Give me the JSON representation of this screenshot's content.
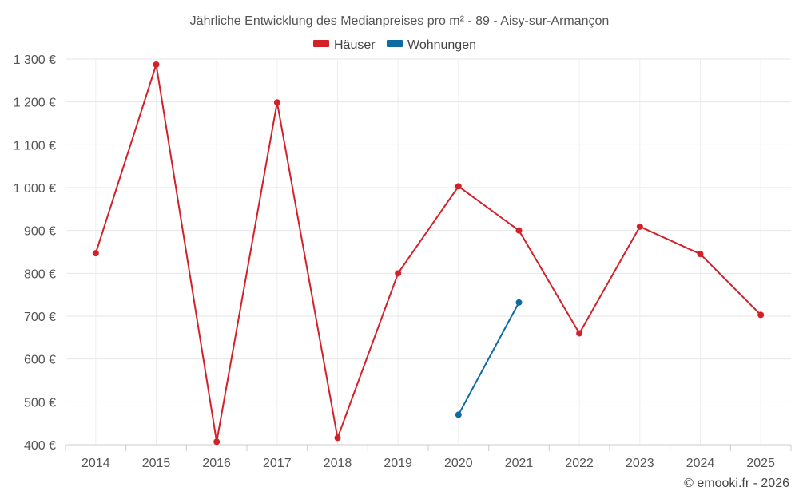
{
  "chart_data": {
    "type": "line",
    "title": "Jährliche Entwicklung des Medianpreises pro m² - 89 - Aisy-sur-Armançon",
    "categories": [
      "2014",
      "2015",
      "2016",
      "2017",
      "2018",
      "2019",
      "2020",
      "2021",
      "2022",
      "2023",
      "2024",
      "2025"
    ],
    "ylim": [
      400,
      1300
    ],
    "yticks": [
      400,
      500,
      600,
      700,
      800,
      900,
      1000,
      1100,
      1200,
      1300
    ],
    "ytick_labels": [
      "400 €",
      "500 €",
      "600 €",
      "700 €",
      "800 €",
      "900 €",
      "1 000 €",
      "1 100 €",
      "1 200 €",
      "1 300 €"
    ],
    "xlabel": "",
    "ylabel": "",
    "grid": true,
    "legend_position": "top-center",
    "series": [
      {
        "name": "Häuser",
        "color": "#d32129",
        "values": [
          847,
          1287,
          407,
          1199,
          416,
          800,
          1003,
          900,
          660,
          909,
          845,
          703
        ]
      },
      {
        "name": "Wohnungen",
        "color": "#0e6aa3",
        "values": [
          null,
          null,
          null,
          null,
          null,
          null,
          470,
          732,
          null,
          null,
          null,
          null
        ]
      }
    ]
  },
  "credit": "© emooki.fr - 2026"
}
